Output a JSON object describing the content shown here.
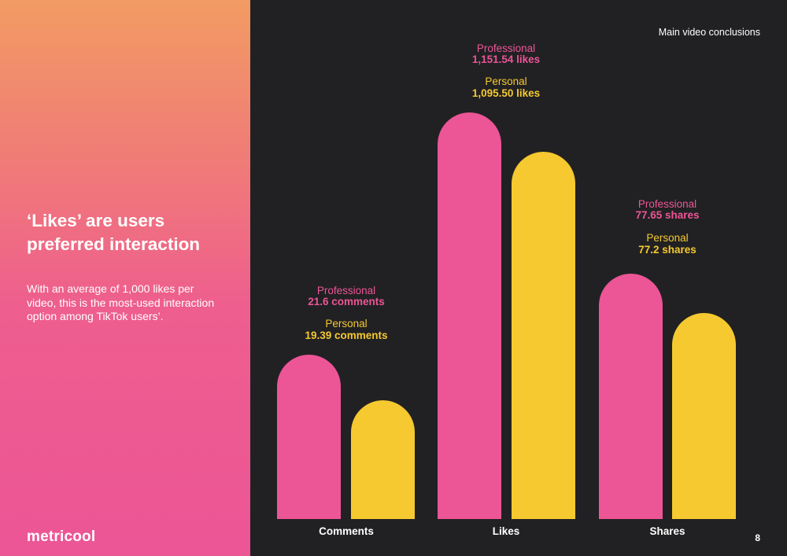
{
  "left_panel": {
    "headline": "‘Likes’ are users preferred interaction",
    "body": "With an average of 1,000 likes per video, this is the most-used interaction option among TikTok users’.",
    "logo": "metricool"
  },
  "header": {
    "section_title": "Main video conclusions"
  },
  "footer": {
    "page_number": "8"
  },
  "colors": {
    "professional": "#ec5596",
    "personal": "#f5c92f",
    "background": "#212123",
    "text": "#ffffff"
  },
  "chart_data": {
    "type": "bar",
    "title": "",
    "xlabel": "",
    "ylabel": "",
    "groups": [
      {
        "category": "Comments",
        "bars": [
          {
            "series": "Professional",
            "value": 21.6,
            "label": "21.6 comments"
          },
          {
            "series": "Personal",
            "value": 19.39,
            "label": "19.39 comments"
          }
        ]
      },
      {
        "category": "Likes",
        "bars": [
          {
            "series": "Professional",
            "value": 1151.54,
            "label": "1,151.54 likes"
          },
          {
            "series": "Personal",
            "value": 1095.5,
            "label": "1,095.50 likes"
          }
        ]
      },
      {
        "category": "Shares",
        "bars": [
          {
            "series": "Professional",
            "value": 77.65,
            "label": "77.65 shares"
          },
          {
            "series": "Personal",
            "value": 77.2,
            "label": "77.2 shares"
          }
        ]
      }
    ],
    "series": [
      {
        "name": "Professional",
        "color": "#ec5596"
      },
      {
        "name": "Personal",
        "color": "#f5c92f"
      }
    ],
    "note": "bars not drawn to a common scale"
  }
}
